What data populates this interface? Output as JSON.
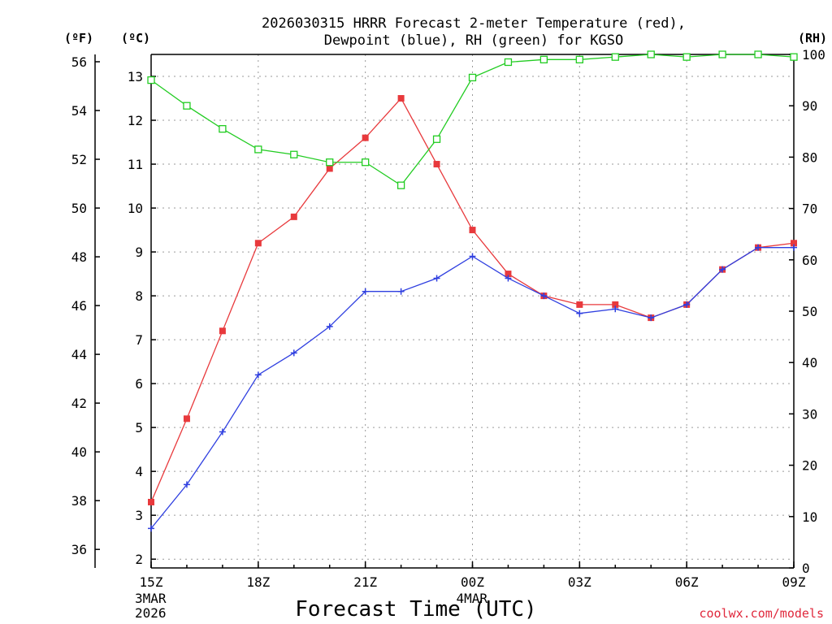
{
  "chart_data": {
    "type": "line",
    "title": [
      "2026030315 HRRR Forecast 2-meter Temperature (red),",
      "Dewpoint (blue), RH (green) for KGSO"
    ],
    "xlabel": "Forecast Time (UTC)",
    "credit": "coolwx.com/models",
    "x_hours": [
      0,
      1,
      2,
      3,
      4,
      5,
      6,
      7,
      8,
      9,
      10,
      11,
      12,
      13,
      14,
      15,
      16,
      17,
      18
    ],
    "x_ticks": [
      {
        "hour": 0,
        "label": "15Z",
        "sub": [
          "3MAR",
          "2026"
        ]
      },
      {
        "hour": 3,
        "label": "18Z",
        "sub": []
      },
      {
        "hour": 6,
        "label": "21Z",
        "sub": []
      },
      {
        "hour": 9,
        "label": "00Z",
        "sub": [
          "4MAR"
        ]
      },
      {
        "hour": 12,
        "label": "03Z",
        "sub": []
      },
      {
        "hour": 15,
        "label": "06Z",
        "sub": []
      },
      {
        "hour": 18,
        "label": "09Z",
        "sub": []
      }
    ],
    "left_celsius_axis": {
      "unit": "(ºC)",
      "min": 1.8,
      "max": 13.5,
      "ticks": [
        2,
        3,
        4,
        5,
        6,
        7,
        8,
        9,
        10,
        11,
        12,
        13
      ]
    },
    "left_fahrenheit_axis": {
      "unit": "(ºF)",
      "ticks": [
        36,
        38,
        40,
        42,
        44,
        46,
        48,
        50,
        52,
        54,
        56
      ]
    },
    "right_rh_axis": {
      "unit": "(RH)",
      "min": 0,
      "max": 100,
      "ticks": [
        0,
        10,
        20,
        30,
        40,
        50,
        60,
        70,
        80,
        90,
        100
      ]
    },
    "series": [
      {
        "name": "Temperature",
        "axis": "celsius",
        "color": "#e8393c",
        "marker": "filled-square",
        "values": [
          3.3,
          5.2,
          7.2,
          9.2,
          9.8,
          10.9,
          11.6,
          12.5,
          11.0,
          9.5,
          8.5,
          8.0,
          7.8,
          7.8,
          7.5,
          7.8,
          8.6,
          9.1,
          9.2
        ]
      },
      {
        "name": "Dewpoint",
        "axis": "celsius",
        "color": "#2f3fe0",
        "marker": "plus",
        "values": [
          2.7,
          3.7,
          4.9,
          6.2,
          6.7,
          7.3,
          8.1,
          8.1,
          8.4,
          8.9,
          8.4,
          8.0,
          7.6,
          7.7,
          7.5,
          7.8,
          8.6,
          9.1,
          9.1
        ]
      },
      {
        "name": "RH",
        "axis": "rh",
        "color": "#22cc22",
        "marker": "open-square",
        "values": [
          95,
          90,
          85.5,
          81.5,
          80.5,
          79,
          79,
          74.5,
          83.5,
          95.5,
          98.5,
          99,
          99,
          99.5,
          100,
          99.5,
          100,
          100,
          99.5
        ]
      }
    ]
  }
}
